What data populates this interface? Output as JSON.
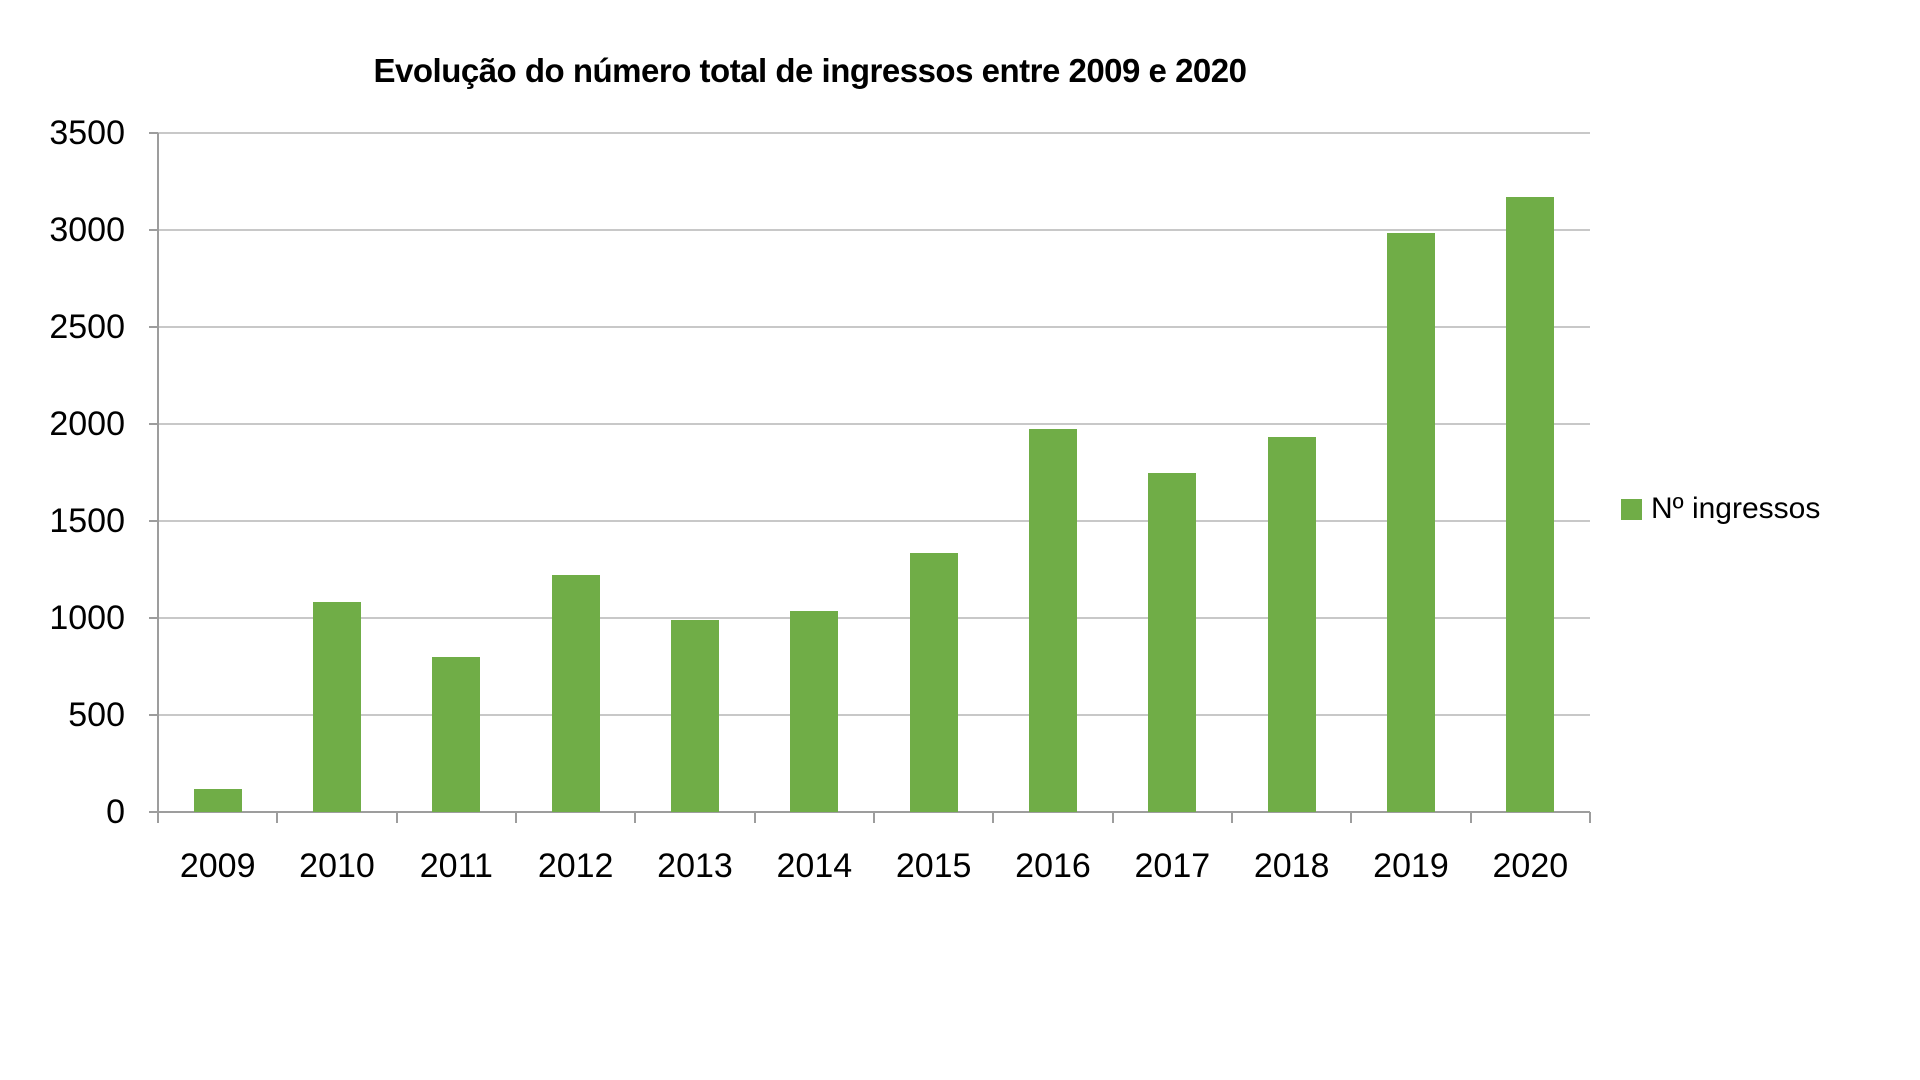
{
  "chart_data": {
    "type": "bar",
    "title": "Evolução do número total de ingressos entre 2009 e 2020",
    "categories": [
      "2009",
      "2010",
      "2011",
      "2012",
      "2013",
      "2014",
      "2015",
      "2016",
      "2017",
      "2018",
      "2019",
      "2020"
    ],
    "series": [
      {
        "name": "Nº ingressos",
        "values": [
          120,
          1085,
          800,
          1220,
          990,
          1035,
          1335,
          1975,
          1750,
          1935,
          2985,
          3170
        ]
      }
    ],
    "xlabel": "",
    "ylabel": "",
    "ylim": [
      0,
      3500
    ],
    "y_ticks": [
      0,
      500,
      1000,
      1500,
      2000,
      2500,
      3000,
      3500
    ],
    "grid": true,
    "legend_position": "right",
    "colors": {
      "bar": "#70AD47",
      "gridline": "#C8C8C8",
      "axis": "#9D9D9D",
      "text": "#000000"
    }
  },
  "legend": {
    "label": "Nº ingressos"
  }
}
